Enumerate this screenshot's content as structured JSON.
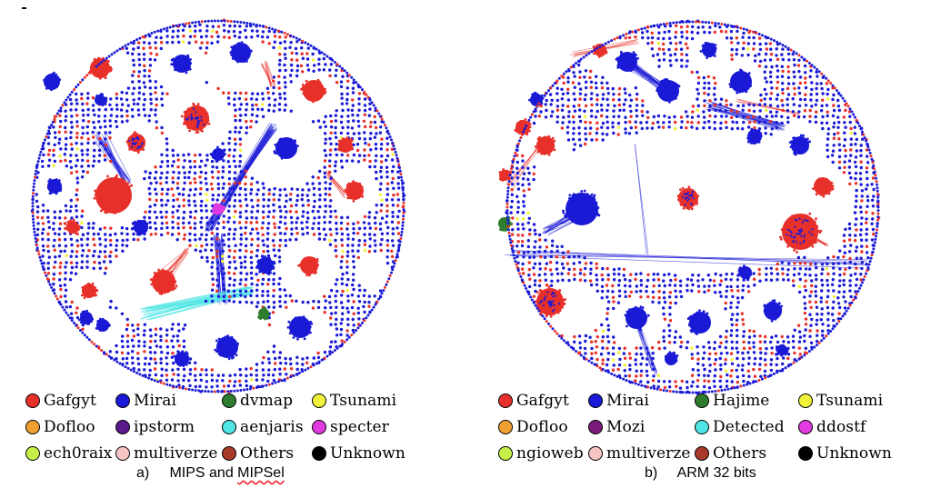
{
  "panels": [
    {
      "id": "a",
      "caption_prefix": "a)",
      "caption_main": "MIPS and ",
      "caption_word": "MIPSel",
      "legend": [
        {
          "label": "Gafgyt",
          "color": "#e8302a"
        },
        {
          "label": "Mirai",
          "color": "#1a1ad6"
        },
        {
          "label": "dvmap",
          "color": "#2e7d2e"
        },
        {
          "label": "Tsunami",
          "color": "#f2f23a"
        },
        {
          "label": "Dofloo",
          "color": "#f0a030"
        },
        {
          "label": "ipstorm",
          "color": "#5a1a8a"
        },
        {
          "label": "aenjaris",
          "color": "#50e6e6"
        },
        {
          "label": "specter",
          "color": "#e03ae0"
        },
        {
          "label": "ech0raix",
          "color": "#c6ef4a"
        },
        {
          "label": "multiverze",
          "color": "#f7c4c4"
        },
        {
          "label": "Others",
          "color": "#a83a2a"
        },
        {
          "label": "Unknown",
          "color": "#000000"
        }
      ]
    },
    {
      "id": "b",
      "caption_prefix": "b)",
      "caption_main": "ARM 32 bits",
      "caption_word": "",
      "legend": [
        {
          "label": "Gafgyt",
          "color": "#e8302a"
        },
        {
          "label": "Mirai",
          "color": "#1a1ad6"
        },
        {
          "label": "Hajime",
          "color": "#2e7d2e"
        },
        {
          "label": "Tsunami",
          "color": "#f2f23a"
        },
        {
          "label": "Dofloo",
          "color": "#f0a030"
        },
        {
          "label": "Mozi",
          "color": "#7a1a7a"
        },
        {
          "label": "Detected",
          "color": "#50e6e6"
        },
        {
          "label": "ddostf",
          "color": "#e03ae0"
        },
        {
          "label": "ngioweb",
          "color": "#c6ef4a"
        },
        {
          "label": "multiverze",
          "color": "#f7c4c4"
        },
        {
          "label": "Others",
          "color": "#a83a2a"
        },
        {
          "label": "Unknown",
          "color": "#000000"
        }
      ]
    }
  ]
}
